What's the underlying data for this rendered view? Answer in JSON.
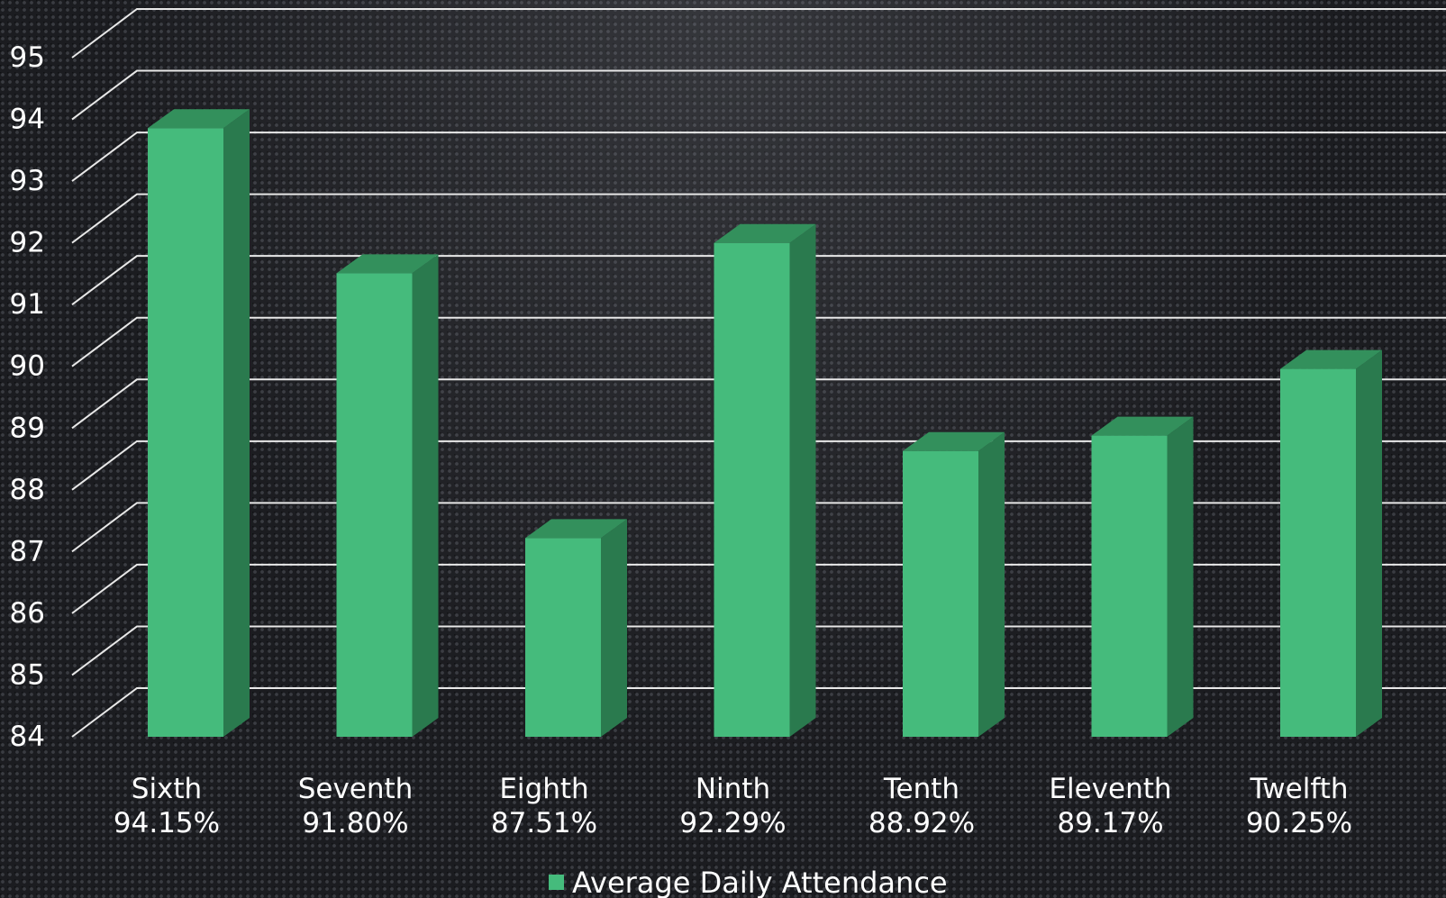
{
  "chart_data": {
    "type": "bar",
    "categories": [
      "Sixth",
      "Seventh",
      "Eighth",
      "Ninth",
      "Tenth",
      "Eleventh",
      "Twelfth"
    ],
    "values": [
      94.15,
      91.8,
      87.51,
      92.29,
      88.92,
      89.17,
      90.25
    ],
    "value_labels": [
      "94.15%",
      "91.80%",
      "87.51%",
      "92.29%",
      "88.92%",
      "89.17%",
      "90.25%"
    ],
    "series": [
      {
        "name": "Average Daily Attendance",
        "values": [
          94.15,
          91.8,
          87.51,
          92.29,
          88.92,
          89.17,
          90.25
        ]
      }
    ],
    "y_ticks": [
      "84",
      "85",
      "86",
      "87",
      "88",
      "89",
      "90",
      "91",
      "92",
      "93",
      "94",
      "95"
    ],
    "ylim": [
      84,
      95
    ],
    "grid": true,
    "three_d": true,
    "legend_position": "bottom-center",
    "colors": {
      "bar_front": "#45bb7c",
      "bar_top": "#33905c",
      "bar_side": "#2a7a4e",
      "grid": "#e8e8e8",
      "text": "#ffffff"
    }
  }
}
